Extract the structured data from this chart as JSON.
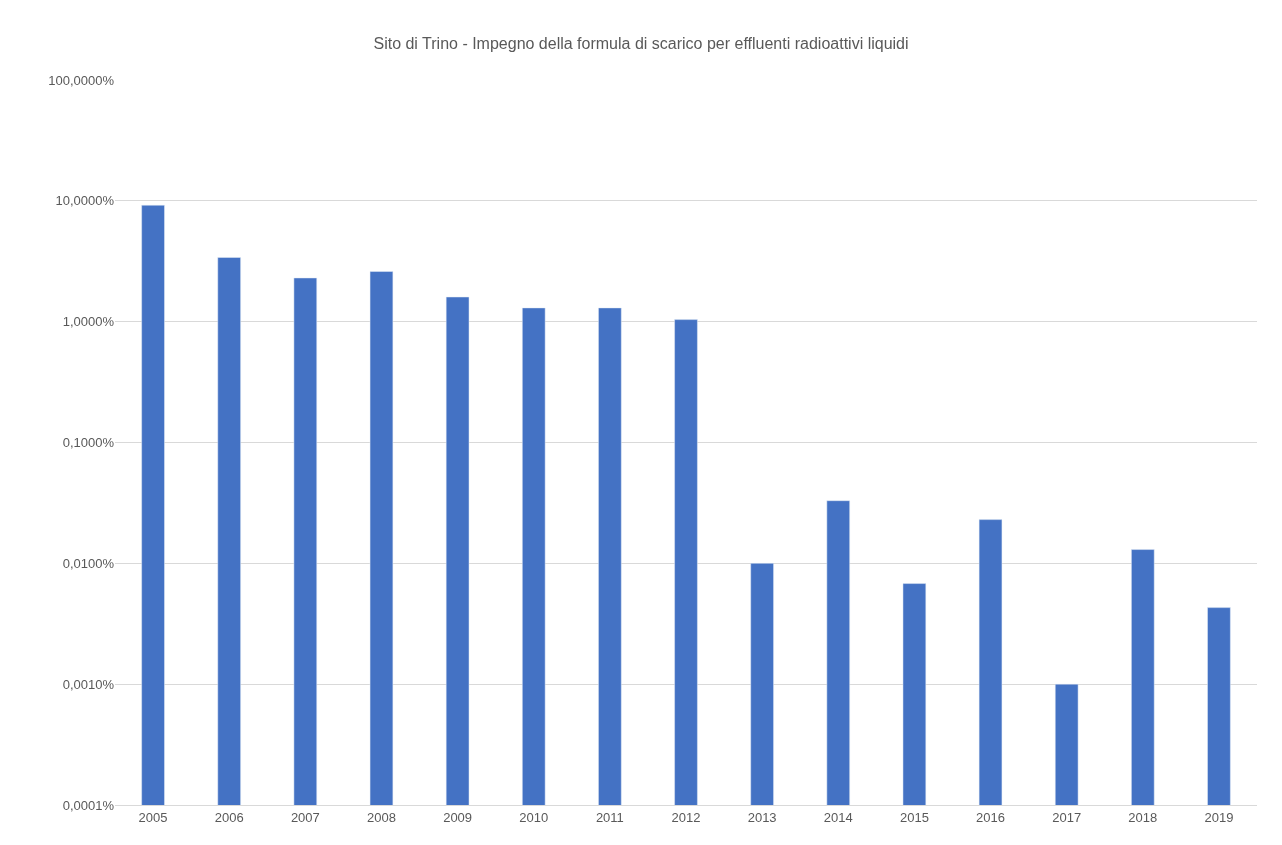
{
  "chart_data": {
    "type": "bar",
    "title": "Sito di Trino - Impegno della formula di scarico per effluenti radioattivi liquidi",
    "categories": [
      "2005",
      "2006",
      "2007",
      "2008",
      "2009",
      "2010",
      "2011",
      "2012",
      "2013",
      "2014",
      "2015",
      "2016",
      "2017",
      "2018",
      "2019"
    ],
    "values": [
      9.2,
      3.4,
      2.3,
      2.6,
      1.6,
      1.3,
      1.3,
      1.04,
      0.01,
      0.033,
      0.0068,
      0.023,
      0.001,
      0.013,
      0.0043
    ],
    "color": "#4472c4",
    "log": "y",
    "ylim": [
      0.0001,
      100
    ],
    "yticks": [
      {
        "value": 0.0001,
        "label": "0,0001%"
      },
      {
        "value": 0.001,
        "label": "0,0010%"
      },
      {
        "value": 0.01,
        "label": "0,0100%"
      },
      {
        "value": 0.1,
        "label": "0,1000%"
      },
      {
        "value": 1,
        "label": "1,0000%"
      },
      {
        "value": 10,
        "label": "10,0000%"
      },
      {
        "value": 100,
        "label": "100,0000%"
      }
    ],
    "grid": "y"
  }
}
